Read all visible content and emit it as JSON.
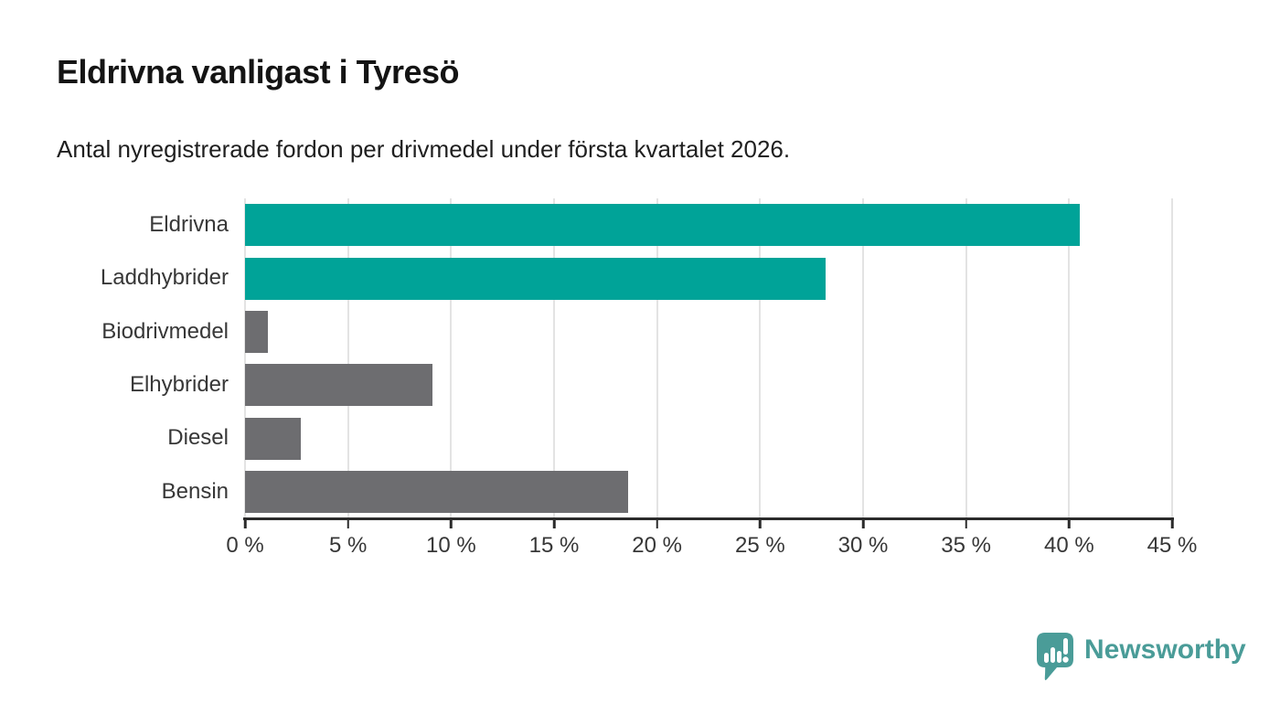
{
  "header": {
    "title": "Eldrivna vanligast i Tyresö",
    "subtitle": "Antal nyregistrerade fordon per drivmedel under första kvartalet 2026."
  },
  "chart_data": {
    "type": "bar",
    "orientation": "horizontal",
    "title": "Eldrivna vanligast i Tyresö",
    "subtitle": "Antal nyregistrerade fordon per drivmedel under första kvartalet 2026.",
    "categories": [
      "Eldrivna",
      "Laddhybrider",
      "Biodrivmedel",
      "Elhybrider",
      "Diesel",
      "Bensin"
    ],
    "values": [
      40.5,
      28.2,
      1.1,
      9.1,
      2.7,
      18.6
    ],
    "unit": "%",
    "bar_colors": [
      "#00a398",
      "#00a398",
      "#6d6d70",
      "#6d6d70",
      "#6d6d70",
      "#6d6d70"
    ],
    "xlim": [
      0,
      45
    ],
    "x_tick_values": [
      0,
      5,
      10,
      15,
      20,
      25,
      30,
      35,
      40,
      45
    ],
    "x_tick_labels": [
      "0 %",
      "5 %",
      "10 %",
      "15 %",
      "20 %",
      "25 %",
      "30 %",
      "35 %",
      "40 %",
      "45 %"
    ],
    "grid": "vertical",
    "legend_position": "none",
    "xlabel": "",
    "ylabel": ""
  },
  "colors": {
    "highlight_teal": "#00a398",
    "neutral_gray": "#6d6d70",
    "gridline": "#e3e3e3",
    "axis": "#2b2b2b",
    "text": "#373737",
    "logo_teal": "#4a9c98"
  },
  "footer": {
    "brand_name": "Newsworthy",
    "logo_icon": "bar-chart-speech-bubble-icon"
  }
}
